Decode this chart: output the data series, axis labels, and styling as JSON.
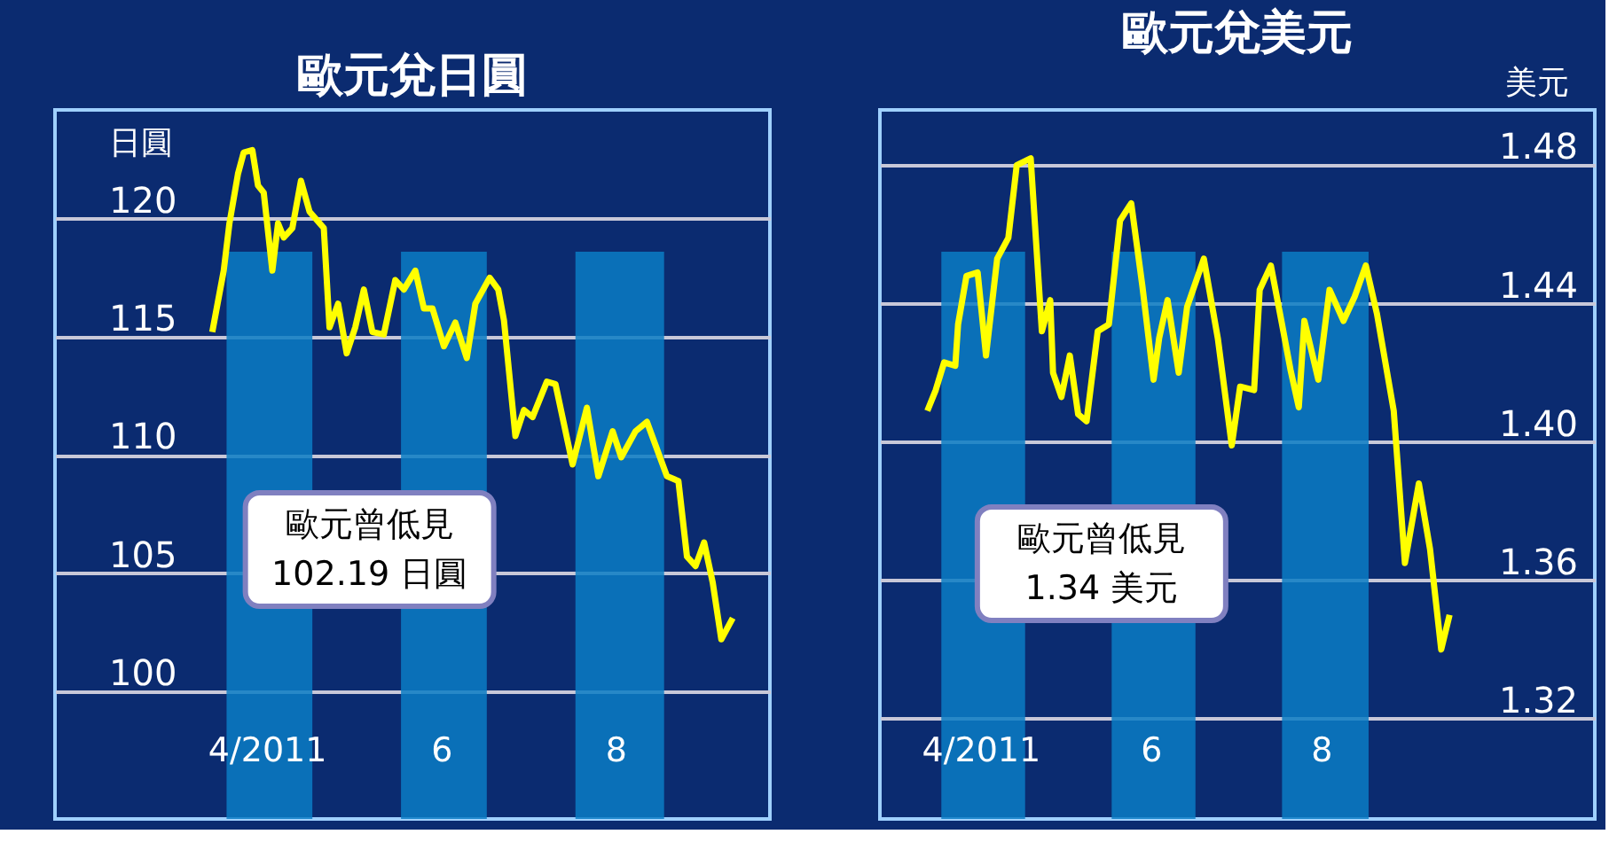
{
  "chart_data": [
    {
      "type": "line",
      "title": "歐元兌日圓",
      "ylabel": "日圓",
      "xlim": [
        "2011-01-31",
        "2011-10-08"
      ],
      "ylim": [
        94.6,
        124.6
      ],
      "yticks": [
        100,
        105,
        110,
        115,
        120
      ],
      "xticks": [
        {
          "value": "2011-04-15",
          "label": "4/2011"
        },
        {
          "value": "2011-06-15",
          "label": "6"
        },
        {
          "value": "2011-08-15",
          "label": "8"
        }
      ],
      "grid": "y",
      "line_style": "solid",
      "bands": [
        {
          "axis": "x",
          "from": "2011-04-01",
          "to": "2011-05-01",
          "label": null,
          "color": "#0a7cc4"
        },
        {
          "axis": "x",
          "from": "2011-06-01",
          "to": "2011-07-01",
          "label": null,
          "color": "#0a7cc4"
        },
        {
          "axis": "x",
          "from": "2011-08-01",
          "to": "2011-09-01",
          "label": null,
          "color": "#0a7cc4"
        }
      ],
      "annotations": [
        "歐元曾低見\n102.19 日圓"
      ],
      "series": [
        {
          "color": "#ffff00",
          "x": [
            "2011-03-27",
            "2011-03-31",
            "2011-04-02",
            "2011-04-05",
            "2011-04-07",
            "2011-04-10",
            "2011-04-12",
            "2011-04-14",
            "2011-04-17",
            "2011-04-19",
            "2011-04-21",
            "2011-04-24",
            "2011-04-27",
            "2011-04-30",
            "2011-05-05",
            "2011-05-07",
            "2011-05-10",
            "2011-05-13",
            "2011-05-16",
            "2011-05-19",
            "2011-05-22",
            "2011-05-26",
            "2011-05-30",
            "2011-06-02",
            "2011-06-06",
            "2011-06-09",
            "2011-06-12",
            "2011-06-16",
            "2011-06-20",
            "2011-06-24",
            "2011-06-27",
            "2011-07-02",
            "2011-07-05",
            "2011-07-07",
            "2011-07-11",
            "2011-07-14",
            "2011-07-17",
            "2011-07-22",
            "2011-07-25",
            "2011-07-31",
            "2011-08-05",
            "2011-08-09",
            "2011-08-14",
            "2011-08-17",
            "2011-08-22",
            "2011-08-26",
            "2011-09-02",
            "2011-09-06",
            "2011-09-09",
            "2011-09-12",
            "2011-09-15",
            "2011-09-18",
            "2011-09-21",
            "2011-09-25"
          ],
          "values": [
            115.2,
            117.8,
            119.8,
            121.9,
            122.8,
            122.9,
            121.4,
            121.1,
            117.8,
            119.8,
            119.2,
            119.6,
            121.6,
            120.3,
            119.6,
            115.4,
            116.4,
            114.3,
            115.4,
            117.0,
            115.2,
            115.1,
            117.4,
            117.0,
            117.8,
            116.2,
            116.2,
            114.6,
            115.6,
            114.1,
            116.4,
            117.5,
            117.0,
            115.7,
            110.8,
            111.9,
            111.6,
            113.1,
            113.0,
            109.6,
            112.0,
            109.1,
            111.0,
            109.9,
            111.0,
            111.4,
            109.1,
            108.9,
            105.7,
            105.3,
            106.3,
            104.6,
            102.2,
            103.1
          ]
        }
      ]
    },
    {
      "type": "line",
      "title": "歐元兌美元",
      "ylabel": "美元",
      "xlim": [
        "2011-03-10",
        "2011-11-21"
      ],
      "ylim": [
        1.291,
        1.496
      ],
      "yticks": [
        1.32,
        1.36,
        {
          "value": 1.4,
          "label": "1.40"
        },
        1.44,
        1.48
      ],
      "xticks": [
        {
          "value": "2011-04-15",
          "label": "4/2011"
        },
        {
          "value": "2011-06-15",
          "label": "6"
        },
        {
          "value": "2011-08-15",
          "label": "8"
        }
      ],
      "grid": "y",
      "line_style": "solid",
      "bands": [
        {
          "axis": "x",
          "from": "2011-04-01",
          "to": "2011-05-01",
          "label": null,
          "color": "#0a7cc4"
        },
        {
          "axis": "x",
          "from": "2011-06-01",
          "to": "2011-07-01",
          "label": null,
          "color": "#0a7cc4"
        },
        {
          "axis": "x",
          "from": "2011-08-01",
          "to": "2011-09-01",
          "label": null,
          "color": "#0a7cc4"
        }
      ],
      "annotations": [
        "歐元曾低見\n1.34 美元"
      ],
      "series": [
        {
          "color": "#ffff00",
          "x": [
            "2011-03-27",
            "2011-03-30",
            "2011-04-02",
            "2011-04-06",
            "2011-04-07",
            "2011-04-10",
            "2011-04-14",
            "2011-04-17",
            "2011-04-21",
            "2011-04-25",
            "2011-04-28",
            "2011-05-03",
            "2011-05-07",
            "2011-05-10",
            "2011-05-11",
            "2011-05-14",
            "2011-05-17",
            "2011-05-20",
            "2011-05-23",
            "2011-05-27",
            "2011-05-31",
            "2011-06-04",
            "2011-06-08",
            "2011-06-12",
            "2011-06-16",
            "2011-06-18",
            "2011-06-21",
            "2011-06-25",
            "2011-06-28",
            "2011-07-04",
            "2011-07-09",
            "2011-07-14",
            "2011-07-17",
            "2011-07-22",
            "2011-07-24",
            "2011-07-28",
            "2011-08-01",
            "2011-08-04",
            "2011-08-07",
            "2011-08-09",
            "2011-08-14",
            "2011-08-18",
            "2011-08-23",
            "2011-08-27",
            "2011-08-31",
            "2011-09-04",
            "2011-09-10",
            "2011-09-14",
            "2011-09-19",
            "2011-09-23",
            "2011-09-27",
            "2011-09-30"
          ],
          "values": [
            1.409,
            1.415,
            1.423,
            1.422,
            1.434,
            1.448,
            1.449,
            1.425,
            1.453,
            1.459,
            1.48,
            1.482,
            1.432,
            1.441,
            1.42,
            1.413,
            1.425,
            1.408,
            1.406,
            1.432,
            1.434,
            1.464,
            1.469,
            1.445,
            1.418,
            1.43,
            1.441,
            1.42,
            1.439,
            1.453,
            1.43,
            1.399,
            1.416,
            1.415,
            1.444,
            1.451,
            1.434,
            1.421,
            1.41,
            1.435,
            1.418,
            1.444,
            1.435,
            1.442,
            1.451,
            1.437,
            1.409,
            1.365,
            1.388,
            1.369,
            1.34,
            1.35
          ]
        }
      ]
    }
  ]
}
